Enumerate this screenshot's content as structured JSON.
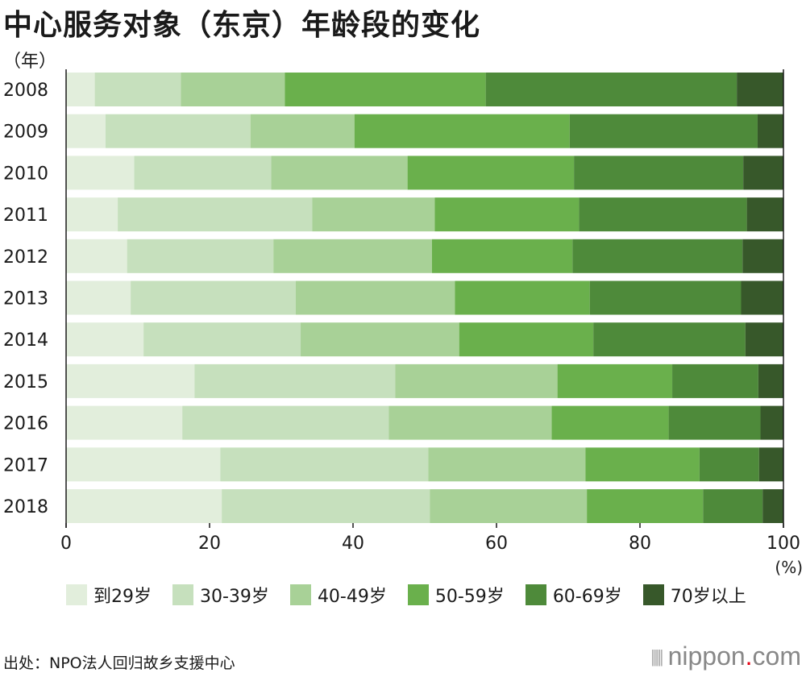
{
  "title": "中心服务对象（东京）年龄段的变化",
  "y_unit": "（年）",
  "x_unit": "(%)",
  "source": "出处：NPO法人回归故乡支援中心",
  "brand": {
    "name": "nippon",
    "dot": ".",
    "suffix": "com"
  },
  "colors": [
    "#e2eedc",
    "#c6e0bd",
    "#a8d197",
    "#6ab04c",
    "#4e8a3a",
    "#37582a"
  ],
  "chart_data": {
    "type": "bar",
    "orientation": "horizontal",
    "stacked": true,
    "percent": true,
    "title": "中心服务对象（东京）年龄段的变化",
    "xlabel": "(%)",
    "ylabel": "（年）",
    "xlim": [
      0,
      100
    ],
    "xticks": [
      0,
      20,
      40,
      60,
      80,
      100
    ],
    "legend_position": "bottom",
    "grid": false,
    "categories": [
      "2008",
      "2009",
      "2010",
      "2011",
      "2012",
      "2013",
      "2014",
      "2015",
      "2016",
      "2017",
      "2018"
    ],
    "series": [
      {
        "name": "到29岁",
        "values": [
          4.0,
          5.5,
          9.5,
          7.2,
          8.5,
          9.0,
          10.8,
          17.9,
          16.2,
          21.5,
          21.7
        ]
      },
      {
        "name": "30-39岁",
        "values": [
          12.0,
          20.2,
          19.1,
          27.1,
          20.4,
          23.0,
          21.9,
          28.0,
          28.8,
          29.0,
          29.0
        ]
      },
      {
        "name": "40-49岁",
        "values": [
          14.5,
          14.5,
          19.0,
          17.1,
          22.1,
          22.2,
          22.1,
          22.6,
          22.7,
          21.9,
          21.9
        ]
      },
      {
        "name": "50-59岁",
        "values": [
          28.0,
          30.0,
          23.2,
          20.1,
          19.6,
          18.8,
          18.7,
          16.0,
          16.3,
          15.9,
          16.2
        ]
      },
      {
        "name": "60-69岁",
        "values": [
          35.0,
          26.2,
          23.6,
          23.4,
          23.7,
          21.1,
          21.2,
          12.0,
          12.8,
          8.3,
          8.3
        ]
      },
      {
        "name": "70岁以上",
        "values": [
          6.5,
          3.6,
          5.6,
          5.1,
          5.7,
          5.9,
          5.3,
          3.5,
          3.2,
          3.4,
          2.9
        ]
      }
    ]
  }
}
